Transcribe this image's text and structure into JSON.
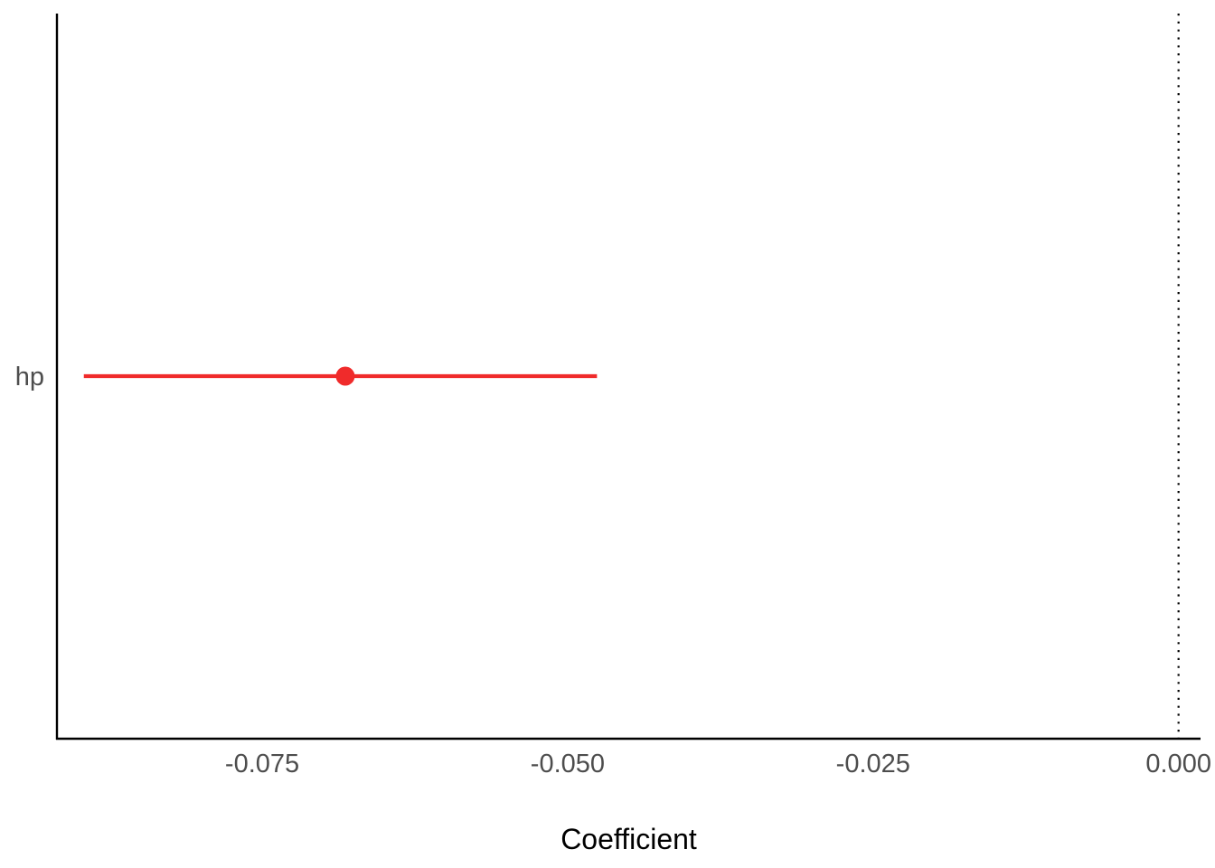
{
  "chart_data": {
    "type": "scatter",
    "title": "",
    "xlabel": "Coefficient",
    "ylabel": "",
    "xlim": [
      -0.0918,
      0.0018
    ],
    "xticks": [
      -0.075,
      -0.05,
      -0.025,
      0.0
    ],
    "xtick_labels": [
      "-0.075",
      "-0.050",
      "-0.025",
      "0.000"
    ],
    "categories": [
      "hp"
    ],
    "points": [
      {
        "term": "hp",
        "estimate": -0.0682,
        "conf_low": -0.0896,
        "conf_high": -0.0476
      }
    ],
    "reference_line": {
      "x": 0.0,
      "style": "dotted"
    },
    "grid": false,
    "legend": "none",
    "colors": {
      "point": "#F02B2B",
      "axis": "#000000",
      "tick_text": "#4d4d4d",
      "reference": "#000000"
    }
  }
}
